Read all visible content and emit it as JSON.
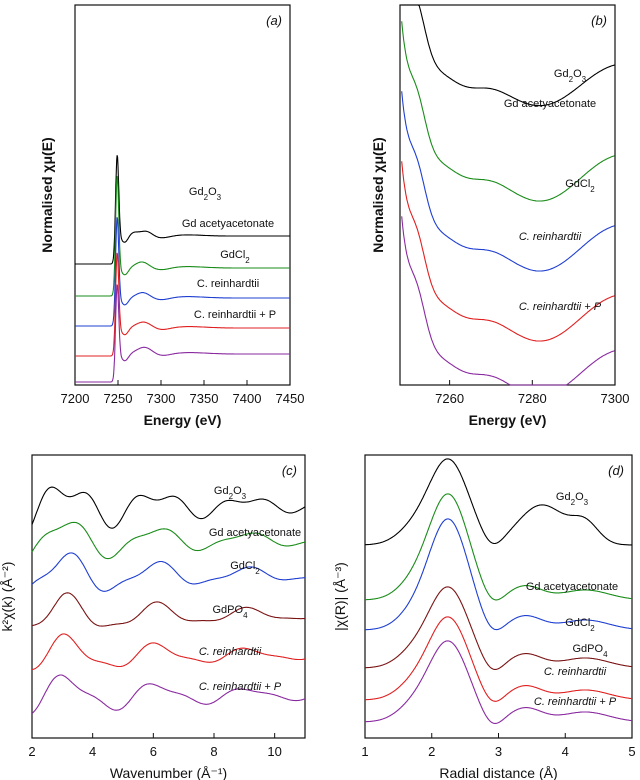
{
  "chart_data": [
    {
      "id": "a",
      "type": "line",
      "panel_label": "(a)",
      "xlabel": "Energy (eV)",
      "ylabel": "Normalised χμ(E)",
      "xlim": [
        7200,
        7450
      ],
      "xticks": [
        "7200",
        "7250",
        "7300",
        "7350",
        "7400",
        "7450"
      ],
      "series": [
        {
          "name": "Gd2O3",
          "label_html": [
            "Gd",
            "2",
            "O",
            "3"
          ],
          "color": "#000000",
          "offset": 4,
          "kind": "xanes",
          "peak": 3.0,
          "osc": [
            [
              7268,
              0.12,
              6
            ],
            [
              7283,
              0.18,
              7
            ],
            [
              7330,
              0.04,
              18
            ]
          ]
        },
        {
          "name": "Gd acetyacetonate",
          "color": "#1a8c1a",
          "offset": 3,
          "kind": "xanes",
          "peak": 3.4,
          "osc": [
            [
              7278,
              0.22,
              8
            ],
            [
              7330,
              0.05,
              20
            ]
          ]
        },
        {
          "name": "GdCl2",
          "label_html": [
            "GdCl",
            "2"
          ],
          "color": "#1f3fd1",
          "offset": 2,
          "kind": "xanes",
          "peak": 3.0,
          "osc": [
            [
              7279,
              0.2,
              8
            ],
            [
              7330,
              0.05,
              20
            ]
          ]
        },
        {
          "name": "C. reinhardtii",
          "color": "#e02020",
          "offset": 1,
          "kind": "xanes",
          "peak": 2.8,
          "osc": [
            [
              7280,
              0.22,
              9
            ],
            [
              7332,
              0.05,
              20
            ]
          ]
        },
        {
          "name": "C. reinhardtii + P",
          "color": "#8a2aa0",
          "offset": 0,
          "kind": "xanes",
          "peak": 2.6,
          "osc": [
            [
              7281,
              0.25,
              9
            ],
            [
              7333,
              0.05,
              20
            ]
          ]
        }
      ]
    },
    {
      "id": "b",
      "type": "line",
      "panel_label": "(b)",
      "xlabel": "Energy (eV)",
      "ylabel": "Normalised χμ(E)",
      "xlim": [
        7248,
        7300
      ],
      "xticks": [
        "7260",
        "7280",
        "7300"
      ],
      "series": [
        {
          "name": "Gd2O3",
          "label_html": [
            "Gd",
            "2",
            "O",
            "3"
          ],
          "italic": false,
          "color": "#000000"
        },
        {
          "name": "Gd acetyacetonate",
          "italic": false,
          "color": "#1a8c1a"
        },
        {
          "name": "GdCl2",
          "label_html": [
            "GdCl",
            "2"
          ],
          "italic": false,
          "color": "#1f3fd1"
        },
        {
          "name": "C. reinhardtii",
          "italic": true,
          "color": "#e02020"
        },
        {
          "name": "C. reinhardtii + P",
          "italic": true,
          "color": "#8a2aa0"
        }
      ]
    },
    {
      "id": "c",
      "type": "line",
      "panel_label": "(c)",
      "xlabel": "Wavenumber (Å⁻¹)",
      "ylabel": "k²χ(k) (Å⁻²)",
      "xlim": [
        2,
        11
      ],
      "xticks": [
        "2",
        "4",
        "6",
        "8",
        "10"
      ],
      "series": [
        {
          "name": "Gd2O3",
          "label_html": [
            "Gd",
            "2",
            "O",
            "3"
          ],
          "italic": false,
          "color": "#000000"
        },
        {
          "name": "Gd acetyacetonate",
          "italic": false,
          "color": "#1a8c1a"
        },
        {
          "name": "GdCl2",
          "label_html": [
            "GdCl",
            "2"
          ],
          "italic": false,
          "color": "#1f3fd1"
        },
        {
          "name": "GdPO4",
          "label_html": [
            "GdPO",
            "4"
          ],
          "italic": false,
          "color": "#7a1414"
        },
        {
          "name": "C. reinhardtii",
          "italic": true,
          "color": "#e02020"
        },
        {
          "name": "C. reinhardtii + P",
          "italic": true,
          "color": "#8a2aa0"
        }
      ]
    },
    {
      "id": "d",
      "type": "line",
      "panel_label": "(d)",
      "xlabel": "Radial distance (Å)",
      "ylabel": "|χ(R)| (Å⁻³)",
      "xlim": [
        1,
        5
      ],
      "xticks": [
        "1",
        "2",
        "3",
        "4",
        "5"
      ],
      "series": [
        {
          "name": "Gd2O3",
          "label_html": [
            "Gd",
            "2",
            "O",
            "3"
          ],
          "italic": false,
          "color": "#000000"
        },
        {
          "name": "Gd acetyacetonate",
          "italic": false,
          "color": "#1a8c1a"
        },
        {
          "name": "GdCl2",
          "label_html": [
            "GdCl",
            "2"
          ],
          "italic": false,
          "color": "#1f3fd1"
        },
        {
          "name": "GdPO4",
          "label_html": [
            "GdPO",
            "4"
          ],
          "italic": false,
          "color": "#7a1414"
        },
        {
          "name": "C. reinhardtii",
          "italic": true,
          "color": "#e02020"
        },
        {
          "name": "C. reinhardtii + P",
          "italic": true,
          "color": "#8a2aa0"
        }
      ]
    }
  ]
}
